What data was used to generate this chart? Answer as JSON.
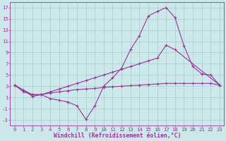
{
  "bg_color": "#cce8ea",
  "grid_color": "#a8cccc",
  "line_color": "#993399",
  "xlabel": "Windchill (Refroidissement éolien,°C)",
  "xlabel_fontsize": 5.8,
  "tick_fontsize": 5.2,
  "ylim": [
    -4,
    18
  ],
  "xlim": [
    -0.5,
    23.5
  ],
  "yticks": [
    -3,
    -1,
    1,
    3,
    5,
    7,
    9,
    11,
    13,
    15,
    17
  ],
  "xticks": [
    0,
    1,
    2,
    3,
    4,
    5,
    6,
    7,
    8,
    9,
    10,
    11,
    12,
    13,
    14,
    15,
    16,
    17,
    18,
    19,
    20,
    21,
    22,
    23
  ],
  "line1_x": [
    0,
    1,
    2,
    3,
    4,
    5,
    6,
    7,
    8,
    9,
    10,
    11,
    12,
    13,
    14,
    15,
    16,
    17,
    18,
    19,
    20,
    21,
    22,
    23
  ],
  "line1_y": [
    3.2,
    2.3,
    1.2,
    1.5,
    0.8,
    0.5,
    0.2,
    -0.5,
    -2.9,
    -0.5,
    3.0,
    4.5,
    6.2,
    9.5,
    12.0,
    15.5,
    16.3,
    17.0,
    15.2,
    10.2,
    6.5,
    5.2,
    5.0,
    3.2
  ],
  "line2_x": [
    0,
    1,
    2,
    3,
    4,
    5,
    6,
    7,
    8,
    9,
    10,
    11,
    12,
    13,
    14,
    15,
    16,
    17,
    18,
    23
  ],
  "line2_y": [
    3.2,
    2.0,
    1.5,
    1.5,
    2.0,
    2.5,
    3.0,
    3.5,
    4.0,
    4.5,
    5.0,
    5.5,
    6.0,
    6.5,
    7.0,
    7.5,
    8.0,
    10.3,
    9.5,
    3.2
  ],
  "line3_x": [
    0,
    1,
    2,
    3,
    4,
    5,
    6,
    7,
    8,
    9,
    10,
    11,
    12,
    13,
    14,
    15,
    16,
    17,
    18,
    19,
    20,
    21,
    22,
    23
  ],
  "line3_y": [
    3.2,
    2.3,
    1.5,
    1.5,
    1.8,
    2.0,
    2.2,
    2.4,
    2.5,
    2.6,
    2.8,
    2.9,
    3.0,
    3.1,
    3.2,
    3.3,
    3.4,
    3.5,
    3.5,
    3.5,
    3.5,
    3.5,
    3.5,
    3.2
  ]
}
